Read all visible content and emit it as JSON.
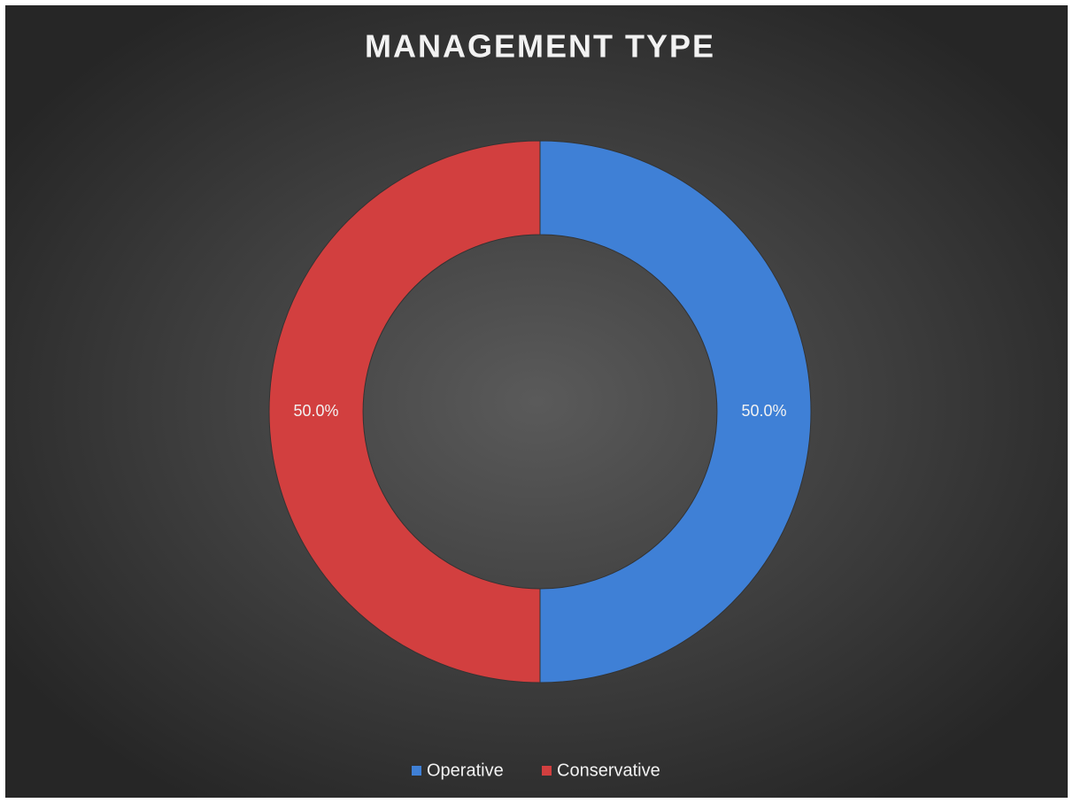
{
  "chart_data": {
    "type": "doughnut",
    "title": "MANAGEMENT TYPE",
    "categories": [
      "Operative",
      "Conservative"
    ],
    "values": [
      50,
      50
    ],
    "value_labels": [
      "50.0%",
      "50.0%"
    ],
    "colors": [
      "#3f80d6",
      "#d23f3f"
    ],
    "legend": "bottom"
  }
}
